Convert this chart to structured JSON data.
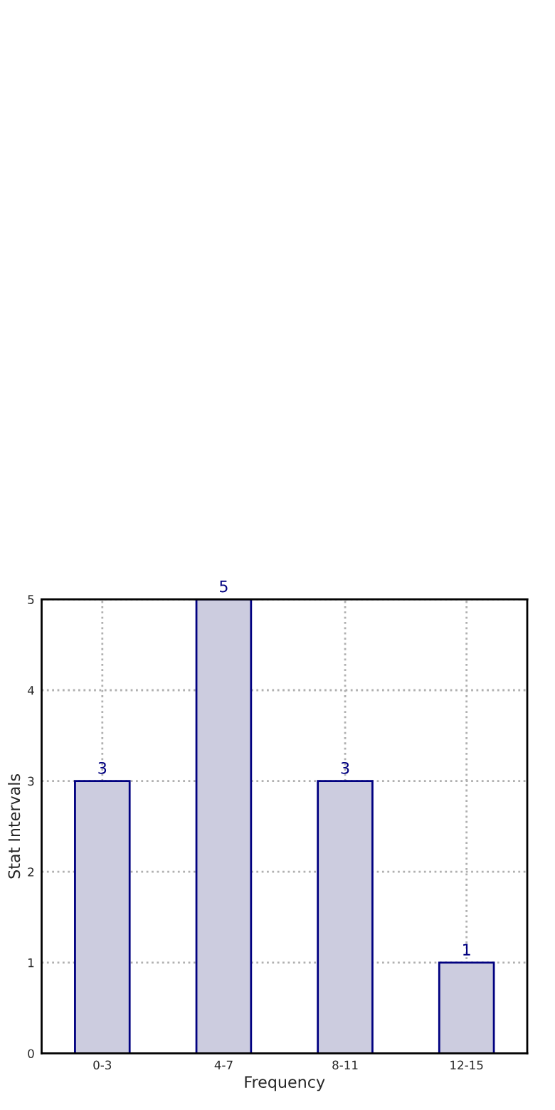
{
  "chart_data": {
    "type": "bar",
    "xlabel": "Frequency",
    "ylabel": "Stat Intervals",
    "categories": [
      "0-3",
      "4-7",
      "8-11",
      "12-15"
    ],
    "values": [
      3,
      5,
      3,
      1
    ],
    "color": "#ccccdf",
    "ylim": [
      0,
      5
    ],
    "yticks": [
      0,
      1,
      2,
      3,
      4,
      5
    ],
    "grid": true,
    "data_labels": true
  }
}
